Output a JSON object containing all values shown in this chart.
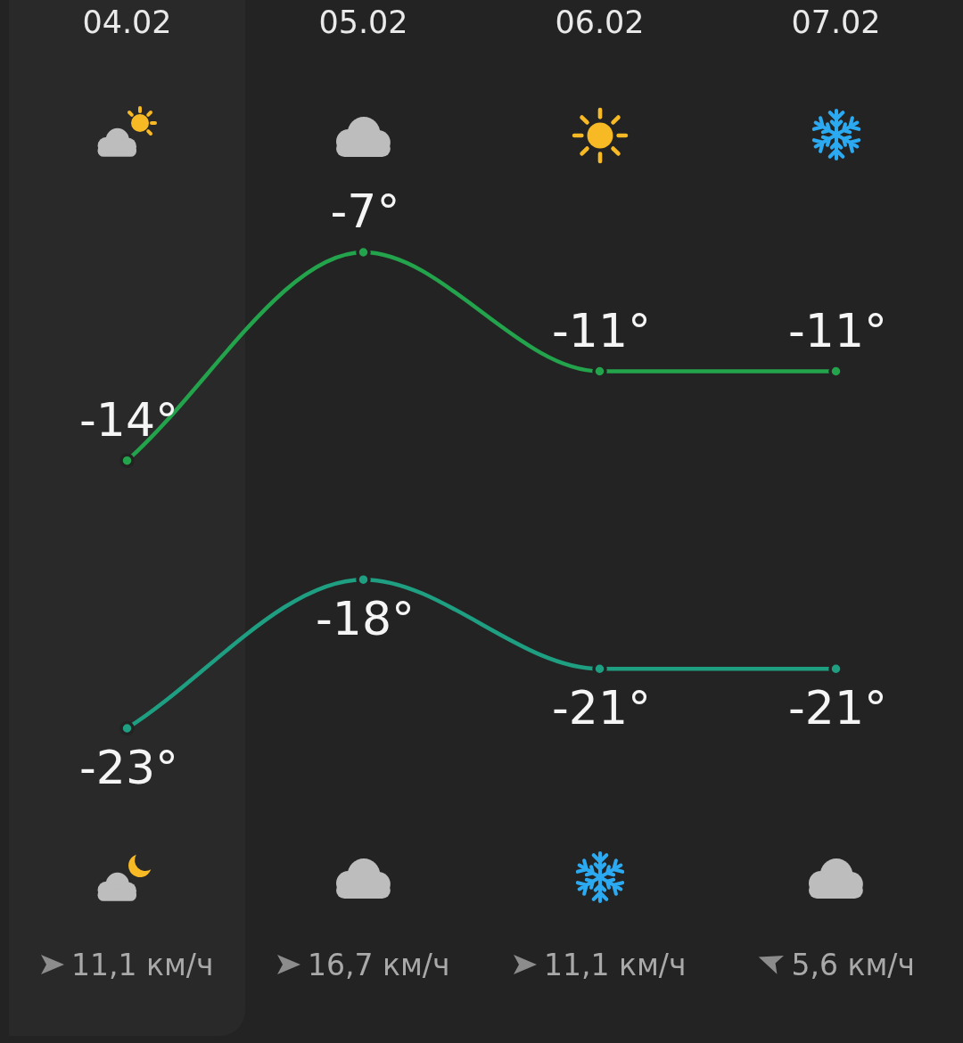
{
  "chart_data": {
    "type": "line",
    "categories": [
      "04.02",
      "05.02",
      "06.02",
      "07.02"
    ],
    "series": [
      {
        "color": "#23a34b",
        "values": [
          -14,
          -7,
          -11,
          -11
        ],
        "value_labels": [
          "-14°",
          "-7°",
          "-11°",
          "-11°"
        ]
      },
      {
        "color": "#1f9f82",
        "values": [
          -23,
          -18,
          -21,
          -21
        ],
        "value_labels": [
          "-23°",
          "-18°",
          "-21°",
          "-21°"
        ]
      }
    ],
    "bands": [
      {
        "axis": "x",
        "from": "04.02",
        "to": "04.02",
        "color": "#292929"
      }
    ],
    "grid": false,
    "legend": false,
    "marker": "circle",
    "line_style": "solid",
    "tick_labels": "x",
    "annotations": [
      "11,1 км/ч",
      "16,7 км/ч",
      "11,1 км/ч",
      "5,6 км/ч"
    ]
  }
}
